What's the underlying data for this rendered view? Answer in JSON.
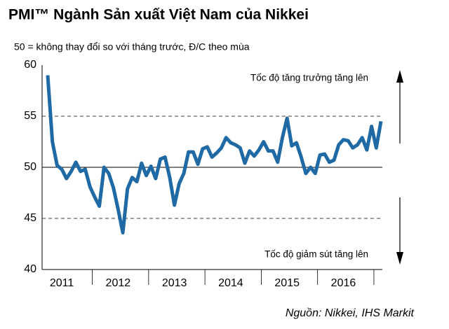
{
  "chart_data": {
    "type": "line",
    "title": "PMI™ Ngành Sản xuất Việt Nam của Nikkei",
    "subtitle": "50 = không thay đổi so với tháng trước, Đ/C theo mùa",
    "annotation_up": "Tốc độ tăng trưởng tăng lên",
    "annotation_down": "Tốc độ giảm sút tăng lên",
    "source": "Nguồn: Nikkei, IHS Markit",
    "categories": [
      null,
      null,
      null,
      "2011",
      null,
      null,
      null,
      null,
      null,
      null,
      null,
      null,
      null,
      null,
      null,
      "2012",
      null,
      null,
      null,
      null,
      null,
      null,
      null,
      null,
      null,
      null,
      null,
      "2013",
      null,
      null,
      null,
      null,
      null,
      null,
      null,
      null,
      null,
      null,
      null,
      "2014",
      null,
      null,
      null,
      null,
      null,
      null,
      null,
      null,
      null,
      null,
      null,
      "2015",
      null,
      null,
      null,
      null,
      null,
      null,
      null,
      null,
      null,
      null,
      null,
      "2016",
      null,
      null,
      null,
      null,
      null,
      null,
      null,
      null
    ],
    "values": [
      59,
      52.5,
      50.2,
      49.8,
      48.9,
      49.6,
      50.5,
      49.6,
      49.8,
      48.1,
      47.1,
      46.2,
      50.0,
      49.4,
      48.0,
      45.9,
      43.6,
      47.9,
      49.0,
      48.6,
      50.4,
      49.2,
      50.1,
      48.9,
      50.8,
      51.0,
      49.0,
      46.3,
      48.4,
      49.4,
      51.5,
      51.5,
      50.3,
      51.8,
      52.0,
      51.0,
      51.4,
      51.9,
      52.9,
      52.4,
      52.2,
      51.9,
      50.4,
      51.6,
      51.1,
      51.7,
      52.5,
      51.6,
      51.6,
      50.5,
      52.9,
      54.8,
      52.1,
      52.4,
      51.0,
      49.4,
      50.0,
      49.4,
      51.2,
      51.3,
      50.5,
      50.7,
      52.2,
      52.7,
      52.6,
      51.9,
      52.2,
      52.9,
      51.7,
      54.0,
      51.9,
      54.5
    ],
    "color": "#1f6aa5",
    "ylim": [
      40,
      60
    ],
    "yticks": [
      40,
      45,
      50,
      55,
      60
    ],
    "grid": true,
    "baseline": 50
  }
}
